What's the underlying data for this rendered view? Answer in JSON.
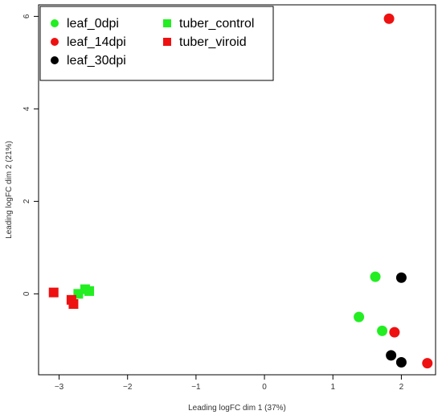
{
  "chart_data": {
    "type": "scatter",
    "title": "",
    "xlabel": "Leading logFC dim 1 (37%)",
    "ylabel": "Leading logFC dim 2 (21%)",
    "xlim": [
      -3.3,
      2.5
    ],
    "ylim": [
      -1.75,
      6.25
    ],
    "xticks": [
      -3,
      -2,
      -1,
      0,
      1,
      2
    ],
    "yticks": [
      0,
      2,
      4,
      6
    ],
    "grid": false,
    "legend": {
      "placement": "top-left",
      "columns": 2
    },
    "series": [
      {
        "name": "leaf_0dpi",
        "marker": "circle",
        "color": "#22ee22",
        "points": [
          [
            1.62,
            0.37
          ],
          [
            1.38,
            -0.5
          ],
          [
            1.72,
            -0.8
          ]
        ]
      },
      {
        "name": "leaf_14dpi",
        "marker": "circle",
        "color": "#ee1111",
        "points": [
          [
            1.82,
            5.95
          ],
          [
            1.9,
            -0.83
          ],
          [
            2.38,
            -1.5
          ]
        ]
      },
      {
        "name": "leaf_30dpi",
        "marker": "circle",
        "color": "#000000",
        "points": [
          [
            2.0,
            0.35
          ],
          [
            1.85,
            -1.33
          ],
          [
            2.0,
            -1.48
          ]
        ]
      },
      {
        "name": "tuber_control",
        "marker": "square",
        "color": "#22ee22",
        "points": [
          [
            -2.72,
            0.0
          ],
          [
            -2.62,
            0.1
          ],
          [
            -2.56,
            0.06
          ]
        ]
      },
      {
        "name": "tuber_viroid",
        "marker": "square",
        "color": "#ee1111",
        "points": [
          [
            -3.08,
            0.03
          ],
          [
            -2.82,
            -0.13
          ],
          [
            -2.79,
            -0.22
          ]
        ]
      }
    ]
  }
}
